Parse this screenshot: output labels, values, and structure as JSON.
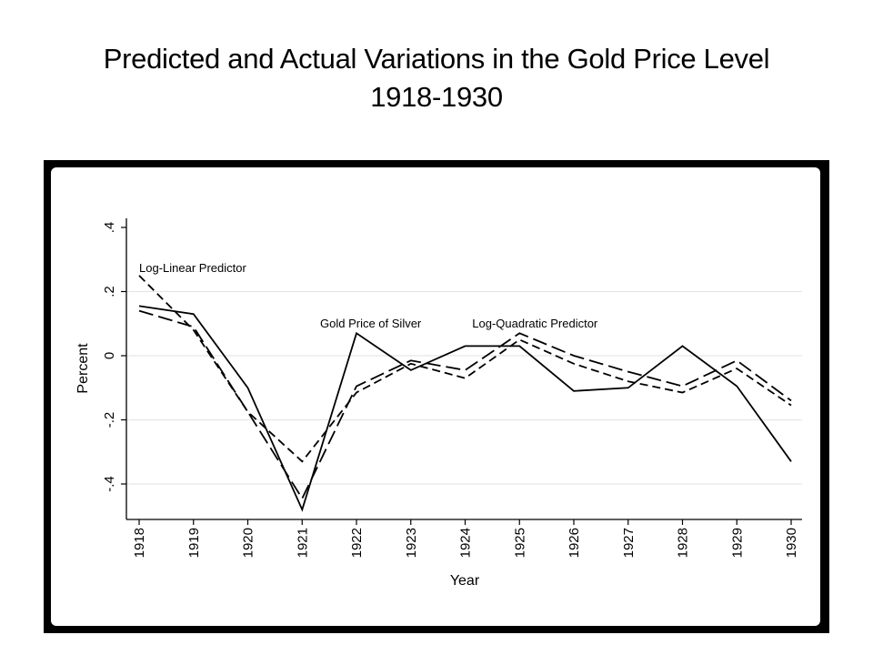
{
  "slide": {
    "title_line1": "Predicted and Actual Variations in the Gold Price Level",
    "title_line2": "1918-1930"
  },
  "chart_data": {
    "type": "line",
    "title": "Predicted and Actual Variations in the Gold Price Level 1918-1930",
    "xlabel": "Year",
    "ylabel": "Percent",
    "x": [
      1918,
      1919,
      1920,
      1921,
      1922,
      1923,
      1924,
      1925,
      1926,
      1927,
      1928,
      1929,
      1930
    ],
    "x_tick_labels": [
      "1918",
      "1919",
      "1920",
      "1921",
      "1922",
      "1923",
      "1924",
      "1925",
      "1926",
      "1927",
      "1928",
      "1929",
      "1930"
    ],
    "y_ticks": [
      -0.4,
      -0.2,
      0,
      0.2,
      0.4
    ],
    "y_tick_labels": [
      "-.4",
      "-.2",
      "0",
      ".2",
      ".4"
    ],
    "ylim": [
      -0.5,
      0.43
    ],
    "grid": true,
    "legend": "none (inline labels)",
    "series": [
      {
        "name": "Gold Price of Silver",
        "style": "solid",
        "color": "#000000",
        "label_anchor_year": 1922,
        "values": [
          0.155,
          0.13,
          -0.1,
          -0.48,
          0.07,
          -0.045,
          0.03,
          0.03,
          -0.11,
          -0.1,
          0.03,
          -0.095,
          -0.33
        ]
      },
      {
        "name": "Log-Linear Predictor",
        "style": "short-dash",
        "color": "#000000",
        "label_anchor_year": 1918,
        "values": [
          0.25,
          0.08,
          -0.175,
          -0.33,
          -0.115,
          -0.025,
          -0.07,
          0.05,
          -0.025,
          -0.08,
          -0.115,
          -0.04,
          -0.155
        ]
      },
      {
        "name": "Log-Quadratic Predictor",
        "style": "long-dash",
        "color": "#000000",
        "label_anchor_year": 1925,
        "values": [
          0.14,
          0.09,
          -0.175,
          -0.445,
          -0.095,
          -0.015,
          -0.045,
          0.07,
          0.0,
          -0.05,
          -0.095,
          -0.015,
          -0.14
        ]
      }
    ]
  }
}
